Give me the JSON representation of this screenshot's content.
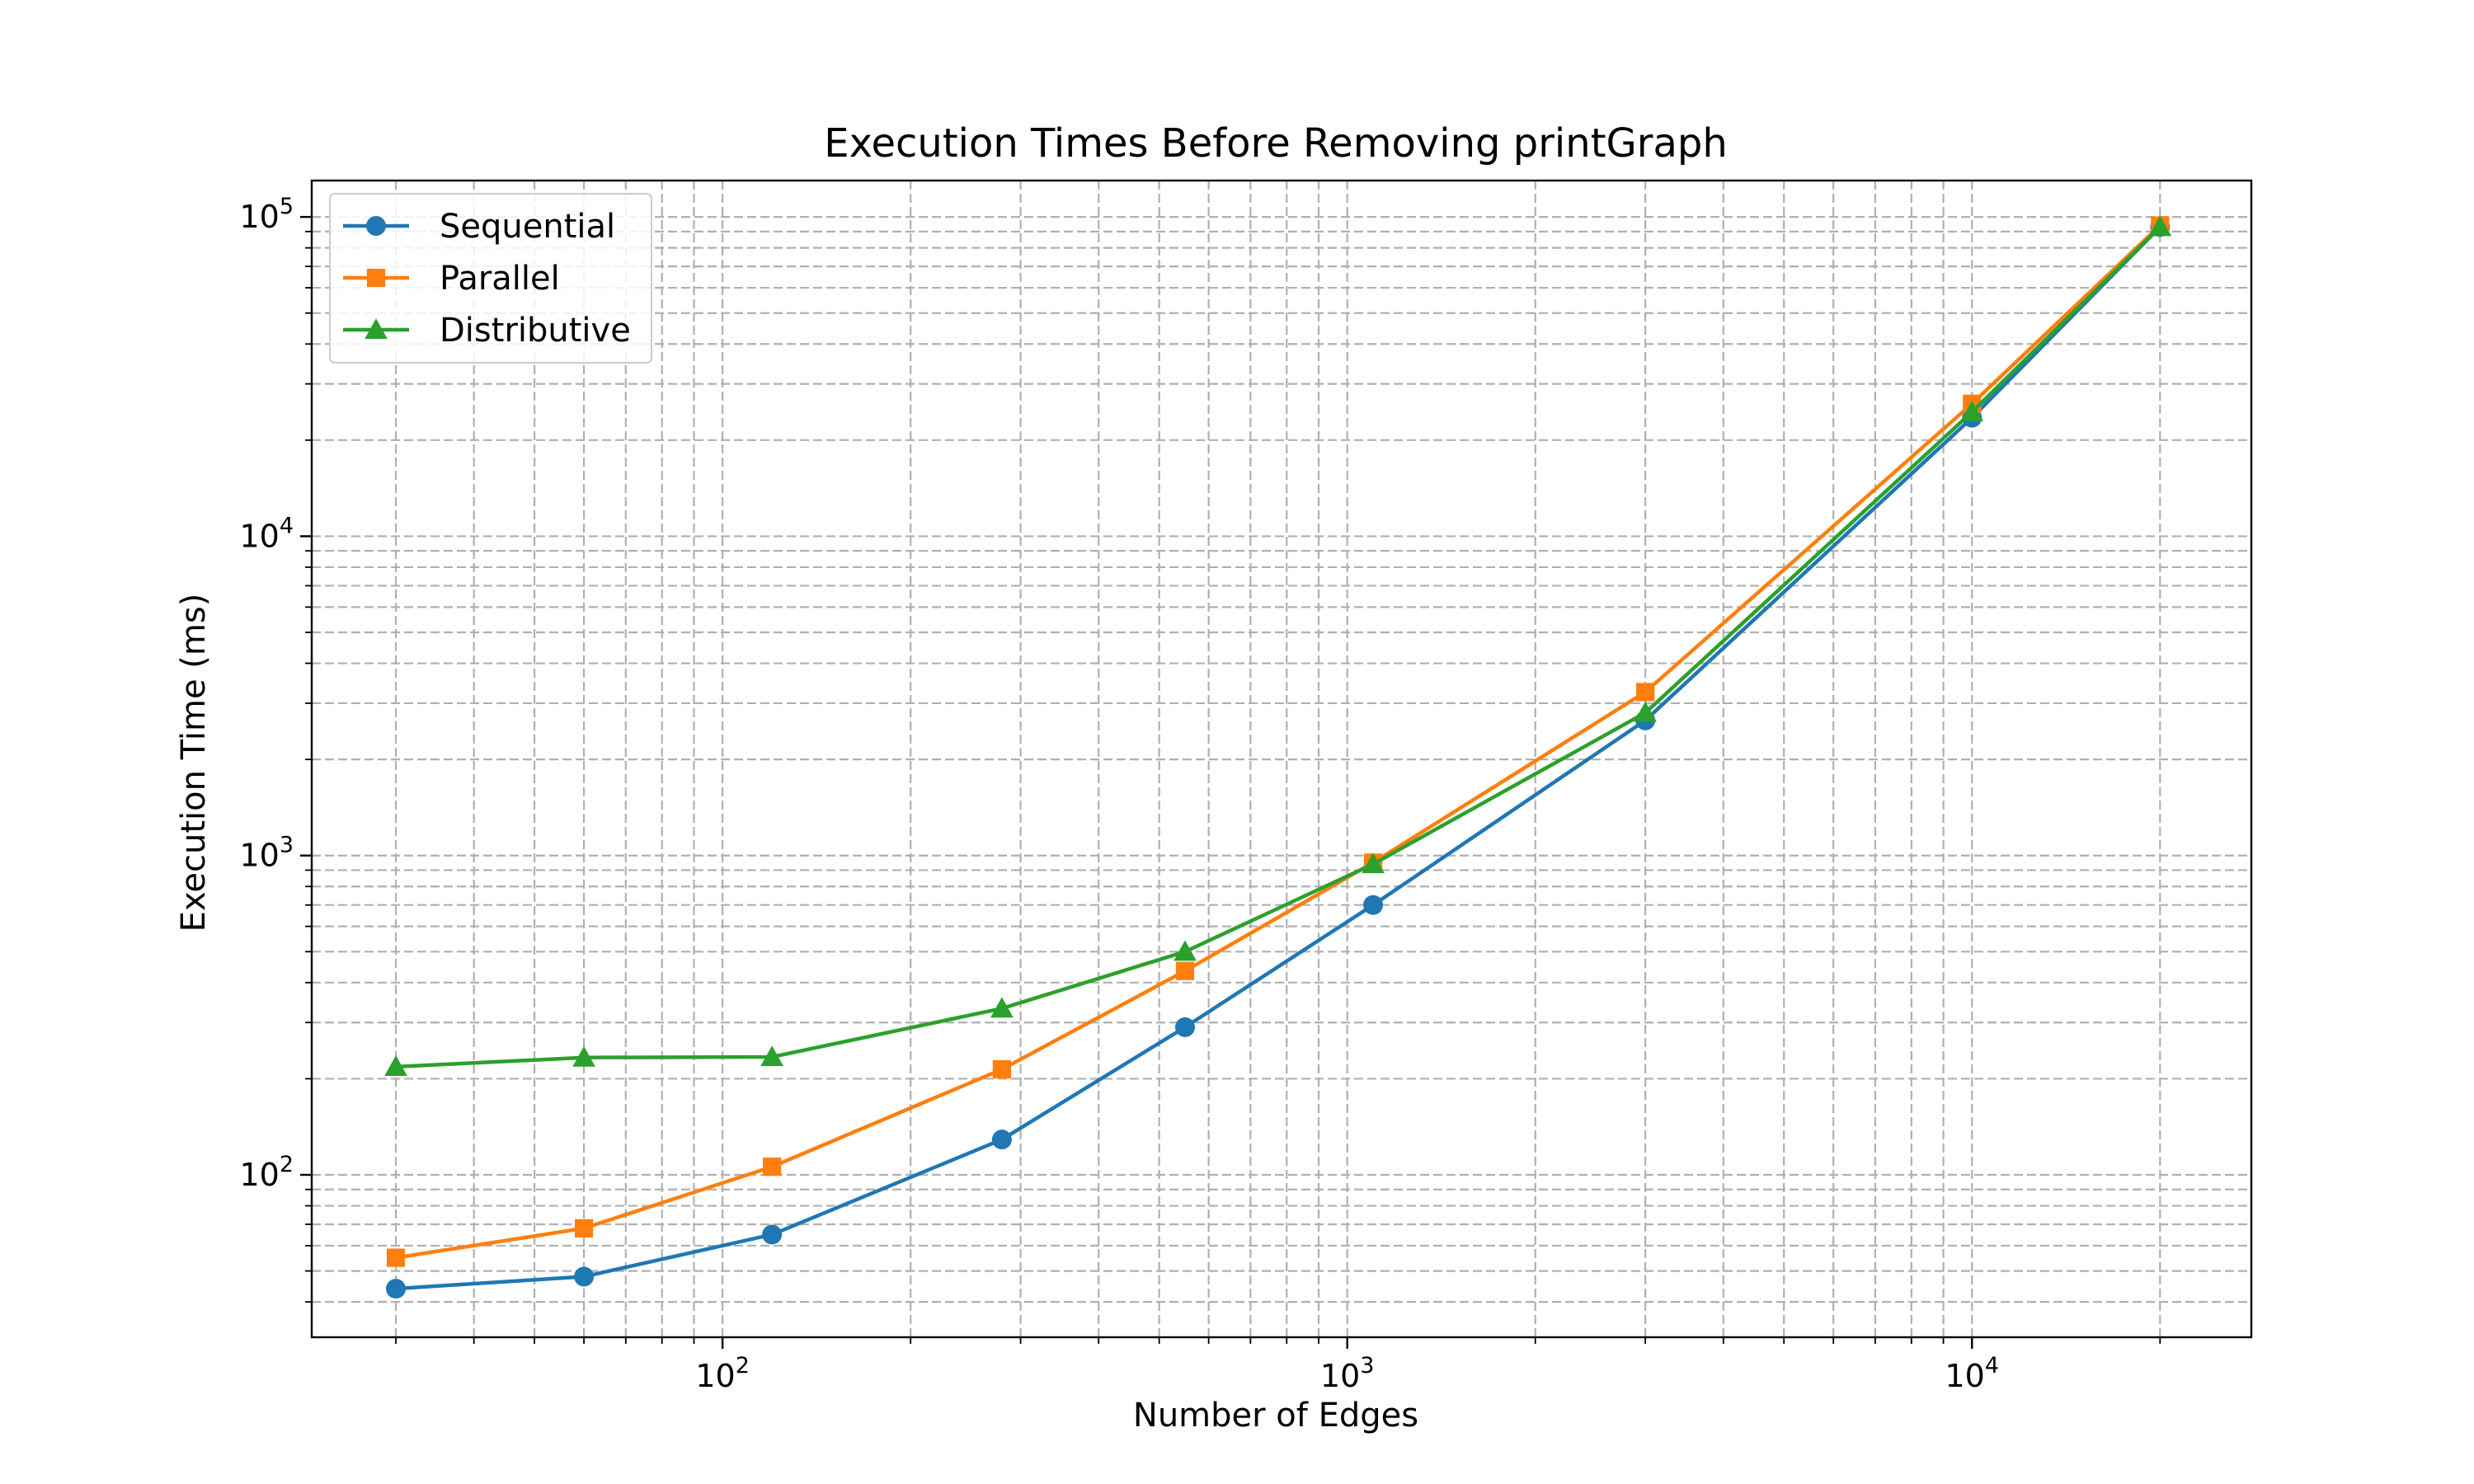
{
  "chart_data": {
    "type": "line",
    "title": "Execution Times Before Removing printGraph",
    "xlabel": "Number of Edges",
    "ylabel": "Execution Time (ms)",
    "x_scale": "log",
    "y_scale": "log",
    "xlim": [
      22,
      28000
    ],
    "ylim": [
      31,
      130000
    ],
    "grid": true,
    "legend_position": "top-left",
    "x_ticks": [
      {
        "base": "10",
        "exp": "2",
        "value": 100
      },
      {
        "base": "10",
        "exp": "3",
        "value": 1000
      },
      {
        "base": "10",
        "exp": "4",
        "value": 10000
      }
    ],
    "y_ticks": [
      {
        "base": "10",
        "exp": "2",
        "value": 100
      },
      {
        "base": "10",
        "exp": "3",
        "value": 1000
      },
      {
        "base": "10",
        "exp": "4",
        "value": 10000
      },
      {
        "base": "10",
        "exp": "5",
        "value": 100000
      }
    ],
    "x": [
      30,
      60,
      120,
      280,
      550,
      1100,
      3000,
      10000,
      20000
    ],
    "series": [
      {
        "name": "Sequential",
        "color": "#1f77b4",
        "marker": "circle",
        "values": [
          44,
          48,
          65,
          129,
          290,
          700,
          2650,
          23500,
          93000
        ]
      },
      {
        "name": "Parallel",
        "color": "#ff7f0e",
        "marker": "square",
        "values": [
          55,
          68,
          106,
          214,
          435,
          950,
          3250,
          26000,
          94000
        ]
      },
      {
        "name": "Distributive",
        "color": "#2ca02c",
        "marker": "triangle",
        "values": [
          218,
          233,
          234,
          332,
          500,
          940,
          2800,
          24500,
          93000
        ]
      }
    ]
  }
}
